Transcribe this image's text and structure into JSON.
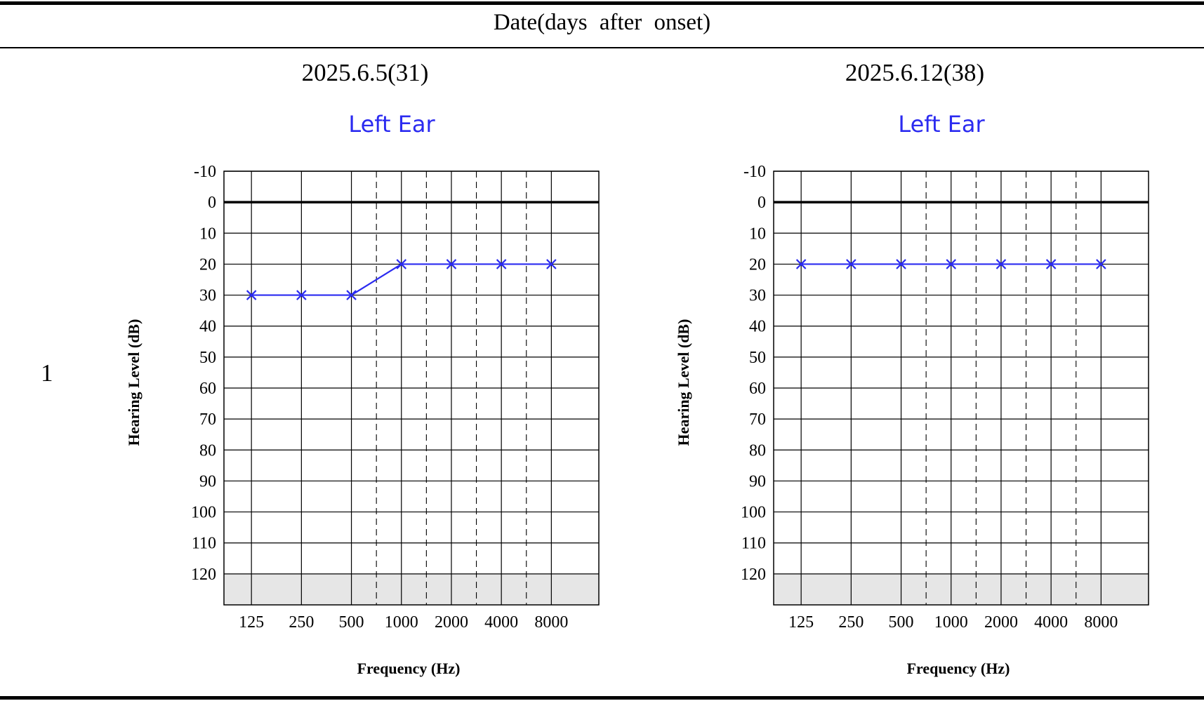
{
  "header": {
    "title": "Date(days after onset)"
  },
  "row": {
    "label": "1"
  },
  "columns": [
    {
      "date": "2025.6.5(31)"
    },
    {
      "date": "2025.6.12(38)"
    }
  ],
  "colors": {
    "series": "#2b2bf0",
    "grid": "#000000",
    "shade": "#e6e6e6"
  },
  "chart_data": [
    {
      "type": "line",
      "title": "Left Ear",
      "xlabel": "Frequency (Hz)",
      "ylabel": "Hearing Level (dB)",
      "categories": [
        "125",
        "250",
        "500",
        "1000",
        "2000",
        "4000",
        "8000"
      ],
      "y_ticks": [
        -10,
        0,
        10,
        20,
        30,
        40,
        50,
        60,
        70,
        80,
        90,
        100,
        110,
        120
      ],
      "ylim": [
        -10,
        130
      ],
      "y_inverted": true,
      "grid": true,
      "shaded_region": [
        120,
        130
      ],
      "series": [
        {
          "marker": "x",
          "values": [
            30,
            30,
            30,
            20,
            20,
            20,
            20
          ]
        }
      ]
    },
    {
      "type": "line",
      "title": "Left Ear",
      "xlabel": "Frequency (Hz)",
      "ylabel": "Hearing Level (dB)",
      "categories": [
        "125",
        "250",
        "500",
        "1000",
        "2000",
        "4000",
        "8000"
      ],
      "y_ticks": [
        -10,
        0,
        10,
        20,
        30,
        40,
        50,
        60,
        70,
        80,
        90,
        100,
        110,
        120
      ],
      "ylim": [
        -10,
        130
      ],
      "y_inverted": true,
      "grid": true,
      "shaded_region": [
        120,
        130
      ],
      "series": [
        {
          "marker": "x",
          "values": [
            20,
            20,
            20,
            20,
            20,
            20,
            20
          ]
        }
      ]
    }
  ]
}
